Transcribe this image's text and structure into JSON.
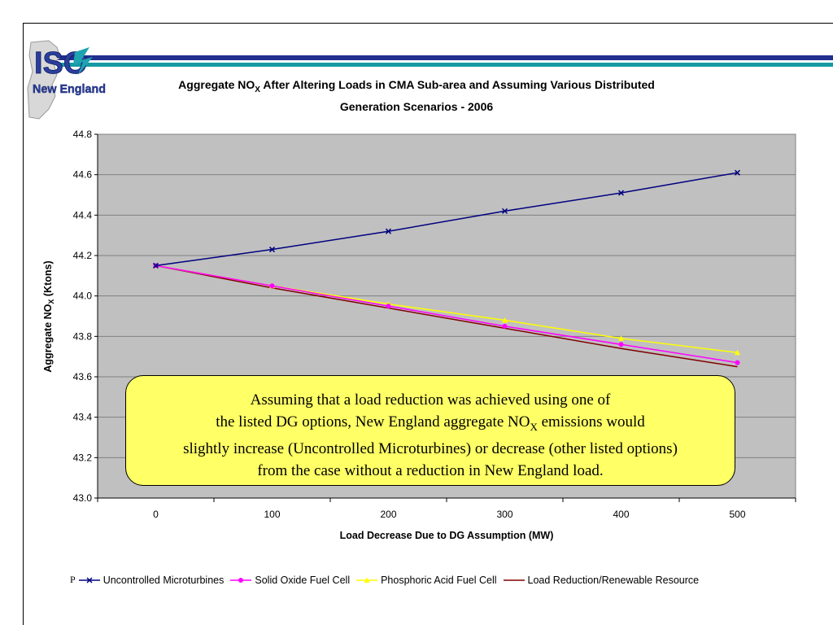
{
  "slide": {
    "logo": {
      "line1": "ISO",
      "line2": "New England",
      "icon": "iso-new-england-logo"
    },
    "callout": {
      "line1": "Assuming that a load reduction was achieved using one of",
      "line2_pre": "the listed DG options, New England aggregate NO",
      "line2_sub": "X",
      "line2_post": " emissions would",
      "line3": "slightly increase (Uncontrolled Microturbines) or decrease (other listed options)",
      "line4": "from the case without a reduction in New England load."
    },
    "legend_prefix": "P"
  },
  "chart_data": {
    "type": "line",
    "title_pre": "Aggregate NO",
    "title_sub": "X",
    "title_post": " After Altering Loads in CMA Sub-area and Assuming Various Distributed",
    "title_line2": "Generation Scenarios - 2006",
    "xlabel": "Load Decrease Due to DG Assumption (MW)",
    "ylabel_pre": "Aggregate NO",
    "ylabel_sub": "X",
    "ylabel_post": " (Ktons)",
    "x": [
      0,
      100,
      200,
      300,
      400,
      500
    ],
    "ylim": [
      43.0,
      44.8
    ],
    "yticks": [
      "43.0",
      "43.2",
      "43.4",
      "43.6",
      "43.8",
      "44.0",
      "44.2",
      "44.4",
      "44.6",
      "44.8"
    ],
    "grid": true,
    "legend_position": "bottom",
    "series": [
      {
        "name": "Uncontrolled Microturbines",
        "values": [
          44.15,
          44.23,
          44.32,
          44.42,
          44.51,
          44.61
        ],
        "color": "#000080",
        "marker": "x"
      },
      {
        "name": "Solid Oxide Fuel Cell",
        "values": [
          44.15,
          44.05,
          43.95,
          43.85,
          43.76,
          43.67
        ],
        "color": "#ff00ff",
        "marker": "circle"
      },
      {
        "name": "Phosphoric Acid Fuel Cell",
        "values": [
          44.15,
          44.05,
          43.96,
          43.88,
          43.79,
          43.72
        ],
        "color": "#ffff00",
        "marker": "triangle"
      },
      {
        "name": "Load Reduction/Renewable Resource",
        "values": [
          44.15,
          44.04,
          43.94,
          43.84,
          43.74,
          43.65
        ],
        "color": "#800000",
        "marker": "none"
      }
    ],
    "plot_background": "#c0c0c0"
  }
}
